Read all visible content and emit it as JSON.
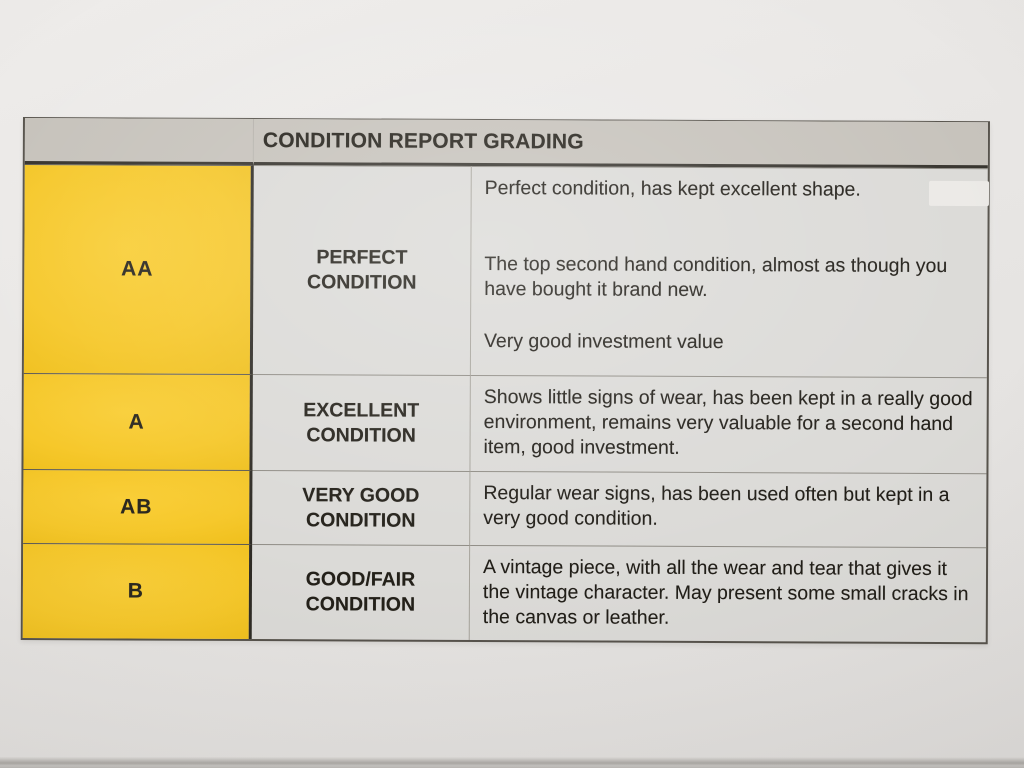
{
  "doc": {
    "table": {
      "title": "CONDITION REPORT GRADING",
      "rows": [
        {
          "grade": "AA",
          "label": "PERFECT CONDITION",
          "paragraphs": [
            "Perfect condition, has kept excellent shape.",
            "The top second hand condition, almost as though you have bought it brand new.",
            "Very good investment value"
          ]
        },
        {
          "grade": "A",
          "label": "EXCELLENT CONDITION",
          "paragraphs": [
            "Shows little signs of wear, has been kept in a really good environment, remains very valuable for a second hand item, good investment."
          ]
        },
        {
          "grade": "AB",
          "label": "VERY GOOD CONDITION",
          "paragraphs": [
            "Regular wear signs, has been used often but kept in a very good condition."
          ]
        },
        {
          "grade": "B",
          "label": "GOOD/FAIR CONDITION",
          "paragraphs": [
            "A vintage piece, with all the wear and tear that gives it the vintage character. May present some small cracks in the canvas or leather."
          ]
        }
      ]
    }
  },
  "colors": {
    "grade_column_yellow": "#f6c82b",
    "header_band_gray": "#c6c2bb",
    "cell_background": "#dbdad7",
    "paper_background": "#e8e6e4",
    "text_color": "#232019"
  }
}
